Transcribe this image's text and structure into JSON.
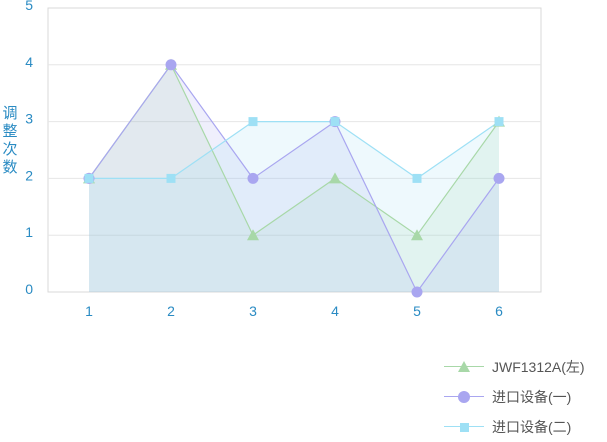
{
  "chart_data": {
    "type": "line",
    "title": "",
    "xlabel": "",
    "ylabel": "调整次数",
    "categories": [
      "1",
      "2",
      "3",
      "4",
      "5",
      "6"
    ],
    "ylim": [
      0,
      5
    ],
    "yticks": [
      "0",
      "1",
      "2",
      "3",
      "4",
      "5"
    ],
    "grid": true,
    "legend_position": "bottom-right",
    "series": [
      {
        "name": "JWF1312A(左)",
        "values": [
          2,
          4,
          1,
          2,
          1,
          3
        ],
        "color": "#a8d8a8",
        "marker": "triangle"
      },
      {
        "name": "进口设备(一)",
        "values": [
          2,
          4,
          2,
          3,
          0,
          2
        ],
        "color": "#a9a6f0",
        "marker": "circle"
      },
      {
        "name": "进口设备(二)",
        "values": [
          2,
          2,
          3,
          3,
          2,
          3
        ],
        "color": "#9ee0f5",
        "marker": "square"
      }
    ]
  },
  "colors": {
    "axis_text": "#2a8bc3",
    "grid": "#e6e6e6",
    "axis": "#d9d9d9"
  }
}
